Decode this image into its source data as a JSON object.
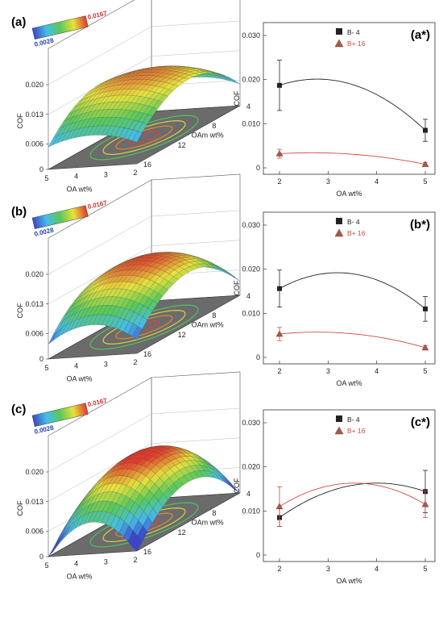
{
  "chart_data": [
    {
      "panel": "(a)",
      "type": "surface3d",
      "colorbar": {
        "min_label": "0.0028",
        "max_label": "0.0167"
      },
      "zlabel": "COF",
      "z_ticks": [
        "0",
        "0.006",
        "0.013",
        "0.020"
      ],
      "xlabel": "OA wt%",
      "x_ticks": [
        "5",
        "4",
        "3",
        "2"
      ],
      "ylabel": "OAm wt%",
      "y_ticks": [
        "4",
        "8",
        "12",
        "16"
      ],
      "surface": {
        "a": 0.0155,
        "b": -0.0002,
        "c": 0.0,
        "d": -0.0022,
        "e": 0.0,
        "f": -0.008
      }
    },
    {
      "panel": "(a*)",
      "type": "line",
      "xlabel": "OA wt%",
      "ylabel": "COF",
      "x_ticks": [
        "2",
        "3",
        "4",
        "5"
      ],
      "y_ticks": [
        "0",
        "0.010",
        "0.020",
        "0.030"
      ],
      "xlim": [
        2,
        5
      ],
      "ylim": [
        0,
        0.03
      ],
      "series": [
        {
          "name": "B- 4",
          "marker": "square",
          "color": "#222222",
          "x": [
            2,
            5
          ],
          "y": [
            0.0187,
            0.0085
          ],
          "err": [
            0.0057,
            0.0025
          ],
          "peak": [
            2.7,
            0.0201
          ]
        },
        {
          "name": "B+ 16",
          "marker": "triangle",
          "color": "#d04a3c",
          "x": [
            2,
            5
          ],
          "y": [
            0.0032,
            0.0008
          ],
          "err": [
            0.001,
            0.0004
          ],
          "peak": [
            2.5,
            0.0034
          ]
        }
      ]
    },
    {
      "panel": "(b)",
      "type": "surface3d",
      "colorbar": {
        "min_label": "0.0028",
        "max_label": "0.0167"
      },
      "zlabel": "COF",
      "z_ticks": [
        "0",
        "0.006",
        "0.013",
        "0.020"
      ],
      "xlabel": "OA wt%",
      "x_ticks": [
        "5",
        "4",
        "3",
        "2"
      ],
      "ylabel": "OAm wt%",
      "y_ticks": [
        "4",
        "8",
        "12",
        "16"
      ],
      "surface": {
        "a": 0.0165,
        "b": -0.0002,
        "c": 0.0,
        "d": -0.004,
        "e": 0.0,
        "f": -0.009
      }
    },
    {
      "panel": "(b*)",
      "type": "line",
      "xlabel": "OA wt%",
      "ylabel": "COF",
      "x_ticks": [
        "2",
        "3",
        "4",
        "5"
      ],
      "y_ticks": [
        "0",
        "0.010",
        "0.020",
        "0.030"
      ],
      "xlim": [
        2,
        5
      ],
      "ylim": [
        0,
        0.03
      ],
      "series": [
        {
          "name": "B- 4",
          "marker": "square",
          "color": "#222222",
          "x": [
            2,
            5
          ],
          "y": [
            0.0156,
            0.011
          ],
          "err": [
            0.0042,
            0.0028
          ],
          "peak": [
            3.2,
            0.0192
          ]
        },
        {
          "name": "B+ 16",
          "marker": "triangle",
          "color": "#d04a3c",
          "x": [
            2,
            5
          ],
          "y": [
            0.0053,
            0.0022
          ],
          "err": [
            0.0015,
            0.0005
          ],
          "peak": [
            3.0,
            0.0057
          ]
        }
      ]
    },
    {
      "panel": "(c)",
      "type": "surface3d",
      "colorbar": {
        "min_label": "0.0028",
        "max_label": "0.0167"
      },
      "zlabel": "COF",
      "z_ticks": [
        "0",
        "0.006",
        "0.013",
        "0.020"
      ],
      "xlabel": "OA wt%",
      "x_ticks": [
        "5",
        "4",
        "3",
        "2"
      ],
      "ylabel": "OAm wt%",
      "y_ticks": [
        "4",
        "8",
        "12",
        "16"
      ],
      "surface": {
        "a": 0.0175,
        "b": 0.0,
        "c": 0.0,
        "d": -0.008,
        "e": 0.0,
        "f": -0.01
      }
    },
    {
      "panel": "(c*)",
      "type": "line",
      "xlabel": "OA wt%",
      "ylabel": "COF",
      "x_ticks": [
        "2",
        "3",
        "4",
        "5"
      ],
      "y_ticks": [
        "0",
        "0.010",
        "0.020",
        "0.030"
      ],
      "xlim": [
        2,
        5
      ],
      "ylim": [
        0,
        0.03
      ],
      "series": [
        {
          "name": "B- 4",
          "marker": "square",
          "color": "#222222",
          "x": [
            2,
            5
          ],
          "y": [
            0.0085,
            0.0144
          ],
          "err": [
            0.002,
            0.0048
          ],
          "peak": [
            4.1,
            0.0163
          ]
        },
        {
          "name": "B+ 16",
          "marker": "triangle",
          "color": "#d04a3c",
          "x": [
            2,
            5
          ],
          "y": [
            0.011,
            0.0115
          ],
          "err": [
            0.0045,
            0.003
          ],
          "peak": [
            3.6,
            0.0163
          ]
        }
      ]
    }
  ]
}
